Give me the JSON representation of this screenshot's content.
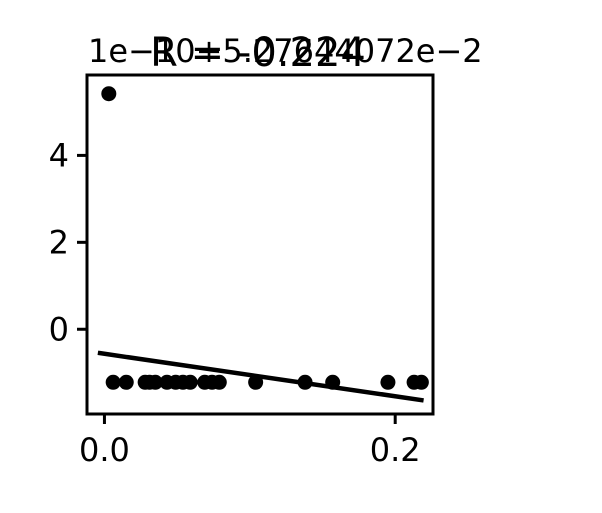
{
  "chart_data": {
    "type": "scatter",
    "title": "R = -0.224",
    "offset_label": "1e−10+5.27644072e−2",
    "xlabel": "",
    "ylabel": "",
    "xlim": [
      -0.012,
      0.226
    ],
    "ylim": [
      -1.95,
      5.85
    ],
    "x_ticks": [
      {
        "value": 0.0,
        "label": "0.0"
      },
      {
        "value": 0.2,
        "label": "0.2"
      }
    ],
    "y_ticks": [
      {
        "value": 0,
        "label": "0"
      },
      {
        "value": 2,
        "label": "2"
      },
      {
        "value": 4,
        "label": "4"
      }
    ],
    "points": [
      {
        "x": 0.003,
        "y": 5.42
      },
      {
        "x": 0.006,
        "y": -1.22
      },
      {
        "x": 0.015,
        "y": -1.22
      },
      {
        "x": 0.028,
        "y": -1.22
      },
      {
        "x": 0.031,
        "y": -1.22
      },
      {
        "x": 0.035,
        "y": -1.22
      },
      {
        "x": 0.043,
        "y": -1.22
      },
      {
        "x": 0.049,
        "y": -1.22
      },
      {
        "x": 0.054,
        "y": -1.22
      },
      {
        "x": 0.059,
        "y": -1.22
      },
      {
        "x": 0.069,
        "y": -1.22
      },
      {
        "x": 0.074,
        "y": -1.22
      },
      {
        "x": 0.079,
        "y": -1.22
      },
      {
        "x": 0.104,
        "y": -1.22
      },
      {
        "x": 0.138,
        "y": -1.22
      },
      {
        "x": 0.157,
        "y": -1.22
      },
      {
        "x": 0.195,
        "y": -1.22
      },
      {
        "x": 0.213,
        "y": -1.22
      },
      {
        "x": 0.218,
        "y": -1.22
      }
    ],
    "fit_line": {
      "x": [
        -0.003,
        0.218
      ],
      "y": [
        -0.55,
        -1.63
      ]
    },
    "marker_color": "#000000",
    "line_color": "#000000",
    "grid": false,
    "legend": "none"
  }
}
